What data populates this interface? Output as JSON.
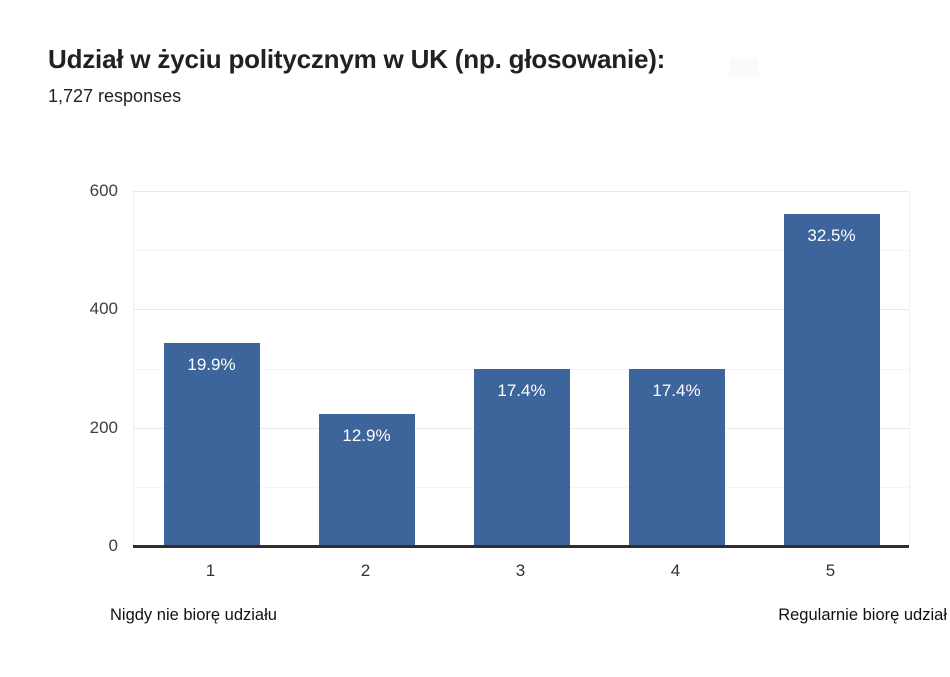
{
  "header": {
    "title": "Udział w życiu politycznym w UK (np. głosowanie):",
    "subtitle": "1,727 responses"
  },
  "chart_data": {
    "type": "bar",
    "title": "Udział w życiu politycznym w UK (np. głosowanie):",
    "subtitle": "1,727 responses",
    "categories": [
      "1",
      "2",
      "3",
      "4",
      "5"
    ],
    "values": [
      343,
      223,
      300,
      300,
      561
    ],
    "bar_labels": [
      "19.9%",
      "12.9%",
      "17.4%",
      "17.4%",
      "32.5%"
    ],
    "ylim": [
      0,
      600
    ],
    "yticks": [
      0,
      200,
      400,
      600
    ],
    "gridline_step": 100,
    "grid": true,
    "legend_position": "none",
    "x_end_labels": {
      "min": "Nigdy nie biorę udziału",
      "max": "Regularnie biorę udział"
    },
    "colors": {
      "bar": "#3e649c",
      "bar_label": "#ffffff",
      "axis_line": "#2e2e2e",
      "grid_major": "#e9e9e9",
      "grid_minor": "#f5f5f5",
      "tick_label": "#333333",
      "value_axis_label": "#404040",
      "end_label": "#111111",
      "title": "#202124"
    }
  }
}
